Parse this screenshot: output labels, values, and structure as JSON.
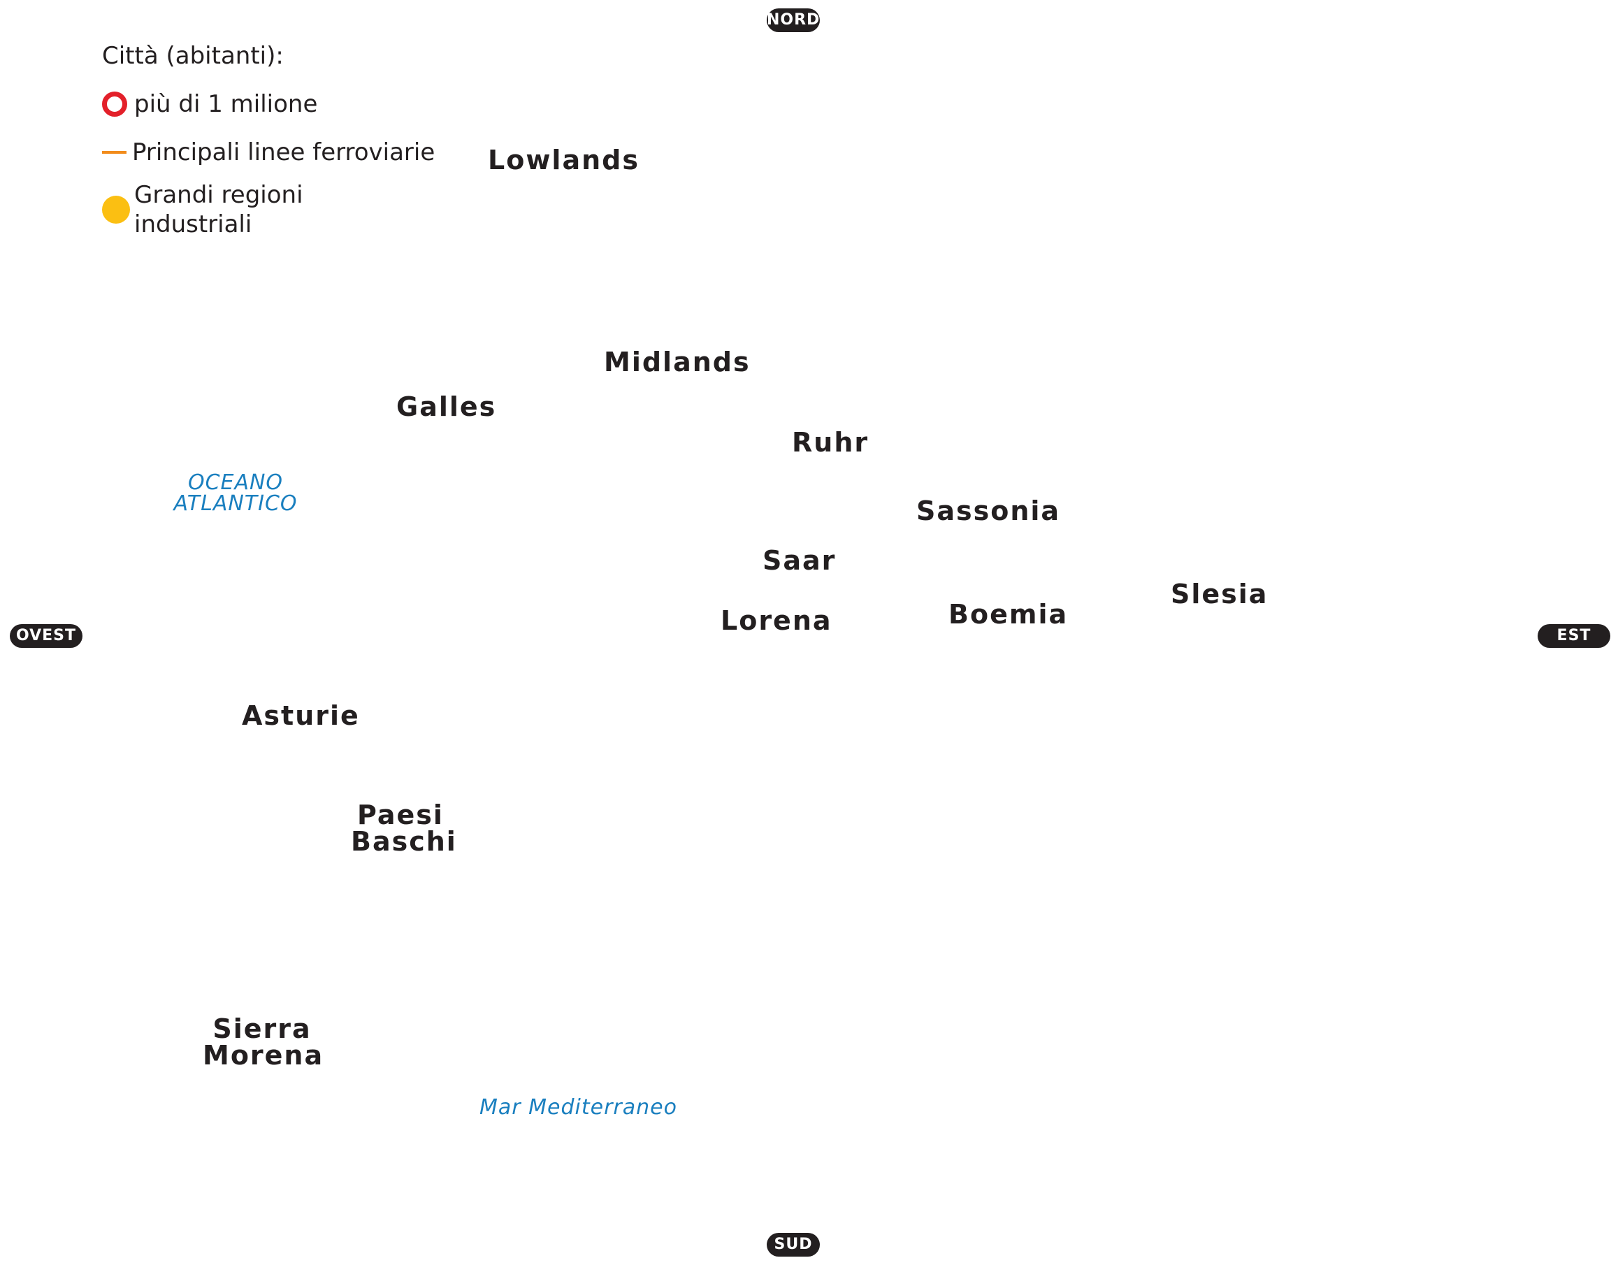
{
  "legend": {
    "title": "Città (abitanti):",
    "items": [
      {
        "symbol": "city-circle-icon",
        "color": "#e3202a",
        "label": "più di 1 milione"
      },
      {
        "symbol": "railway-line-icon",
        "color": "#f28c1c",
        "label": "Principali linee ferroviarie"
      },
      {
        "symbol": "industrial-region-icon",
        "color": "#fbbf12",
        "label_line1": "Grandi regioni",
        "label_line2": "industriali"
      }
    ]
  },
  "compass": {
    "north": "NORD",
    "south": "SUD",
    "west": "OVEST",
    "east": "EST"
  },
  "regions": {
    "lowlands": "Lowlands",
    "midlands": "Midlands",
    "galles": "Galles",
    "ruhr": "Ruhr",
    "sassonia": "Sassonia",
    "saar": "Saar",
    "lorena": "Lorena",
    "boemia": "Boemia",
    "slesia": "Slesia",
    "asturie": "Asturie",
    "paesi_baschi_line1": "Paesi",
    "paesi_baschi_line2": "Baschi",
    "sierra_morena_line1": "Sierra",
    "sierra_morena_line2": "Morena"
  },
  "water": {
    "oceano_line1": "OCEANO",
    "oceano_line2": "ATLANTICO",
    "mediterraneo": "Mar Mediterraneo"
  }
}
